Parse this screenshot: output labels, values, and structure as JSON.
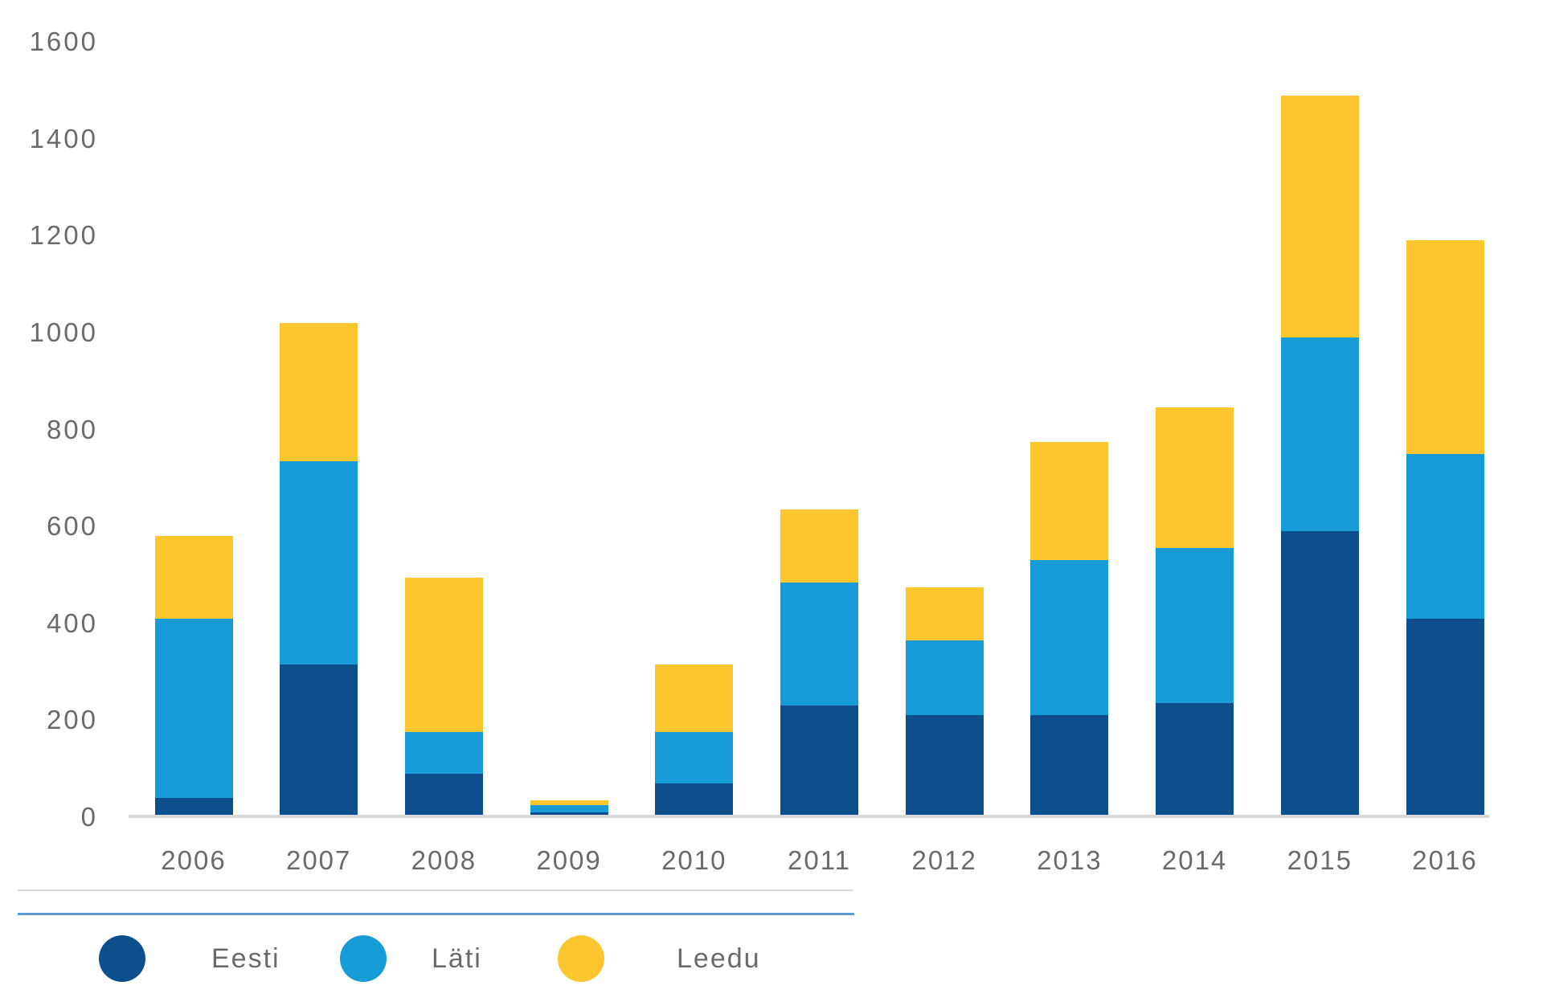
{
  "chart_data": {
    "type": "bar",
    "stacked": true,
    "title": "",
    "xlabel": "",
    "ylabel": "",
    "categories": [
      "2006",
      "2007",
      "2008",
      "2009",
      "2010",
      "2011",
      "2012",
      "2013",
      "2014",
      "2015",
      "2016"
    ],
    "series": [
      {
        "name": "Eesti",
        "color": "#0d4e8c",
        "values": [
          40,
          315,
          90,
          10,
          70,
          230,
          210,
          210,
          235,
          590,
          410
        ]
      },
      {
        "name": "Läti",
        "color": "#189cd8",
        "values": [
          370,
          420,
          85,
          15,
          105,
          255,
          155,
          320,
          320,
          400,
          340
        ]
      },
      {
        "name": "Leedu",
        "color": "#fdc52e",
        "values": [
          170,
          285,
          320,
          10,
          140,
          150,
          110,
          245,
          290,
          500,
          440
        ]
      }
    ],
    "totals": [
      580,
      1020,
      495,
      35,
      315,
      635,
      475,
      775,
      845,
      1490,
      1190
    ],
    "ylim": [
      0,
      1600
    ],
    "yticks": [
      0,
      200,
      400,
      600,
      800,
      1000,
      1200,
      1400,
      1600
    ],
    "grid": false,
    "legend_position": "bottom-left"
  },
  "legend": {
    "items": [
      {
        "label": "Eesti"
      },
      {
        "label": "Läti"
      },
      {
        "label": "Leedu"
      }
    ]
  },
  "colors": {
    "axis_line": "#d9d9d9",
    "divider_gray": "#d9d9d9",
    "divider_blue": "#5b9bd5",
    "tick_text": "#6a6a6a"
  }
}
